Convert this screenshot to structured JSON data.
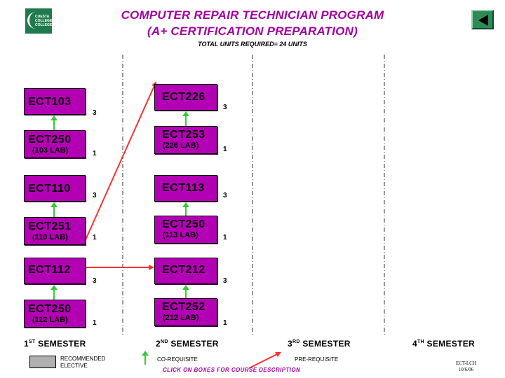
{
  "header": {
    "title_line1": "COMPUTER REPAIR TECHNICIAN PROGRAM",
    "title_line2": "(A+ CERTIFICATION PREPARATION)",
    "total_units": "TOTAL UNITS REQUIRED= 24 UNITS"
  },
  "logo": {
    "text_line1": "CUESTA",
    "text_line2": "COLLEGE",
    "text_line3": "COLLEGE"
  },
  "semester1": {
    "label_num": "1",
    "label_sup": "ST",
    "label_text": " SEMESTER",
    "courses": [
      {
        "code": "ECT103",
        "lab": "",
        "units": "3"
      },
      {
        "code": "ECT250",
        "lab": "(103 LAB)",
        "units": "1"
      },
      {
        "code": "ECT110",
        "lab": "",
        "units": "3"
      },
      {
        "code": "ECT251",
        "lab": "(110 LAB)",
        "units": "1"
      },
      {
        "code": "ECT112",
        "lab": "",
        "units": "3"
      },
      {
        "code": "ECT250",
        "lab": "(112 LAB)",
        "units": "1"
      }
    ]
  },
  "semester2": {
    "label_num": "2",
    "label_sup": "ND",
    "label_text": " SEMESTER",
    "courses": [
      {
        "code": "ECT226",
        "lab": "",
        "units": "3"
      },
      {
        "code": "ECT253",
        "lab": "(226 LAB)",
        "units": "1"
      },
      {
        "code": "ECT113",
        "lab": "",
        "units": "3"
      },
      {
        "code": "ECT250",
        "lab": "(113 LAB)",
        "units": "1"
      },
      {
        "code": "ECT212",
        "lab": "",
        "units": "3"
      },
      {
        "code": "ECT252",
        "lab": "(212 LAB)",
        "units": "1"
      }
    ]
  },
  "semester3": {
    "label_num": "3",
    "label_sup": "RD",
    "label_text": " SEMESTER"
  },
  "semester4": {
    "label_num": "4",
    "label_sup": "TH",
    "label_text": " SEMESTER"
  },
  "legend": {
    "recommended_line1": "RECOMMENDED",
    "recommended_line2": "ELECTIVE",
    "corequisite": "CO-REQUISITE",
    "prerequisite": "PRE-REQUISITE"
  },
  "footer": {
    "link": "CLICK ON BOXES FOR COURSE DESCRIPTION",
    "doc_id_line1": "ECT-LCH",
    "doc_id_line2": "10/6/06"
  },
  "colors": {
    "course_box": "#b400b4",
    "title": "#a4009e",
    "corequisite_arrow": "#33cc33",
    "prerequisite_arrow": "#ff3030",
    "elective_box": "#b0b0b0"
  },
  "icons": {
    "back_button": "back-arrow-icon",
    "logo": "college-logo-icon"
  }
}
